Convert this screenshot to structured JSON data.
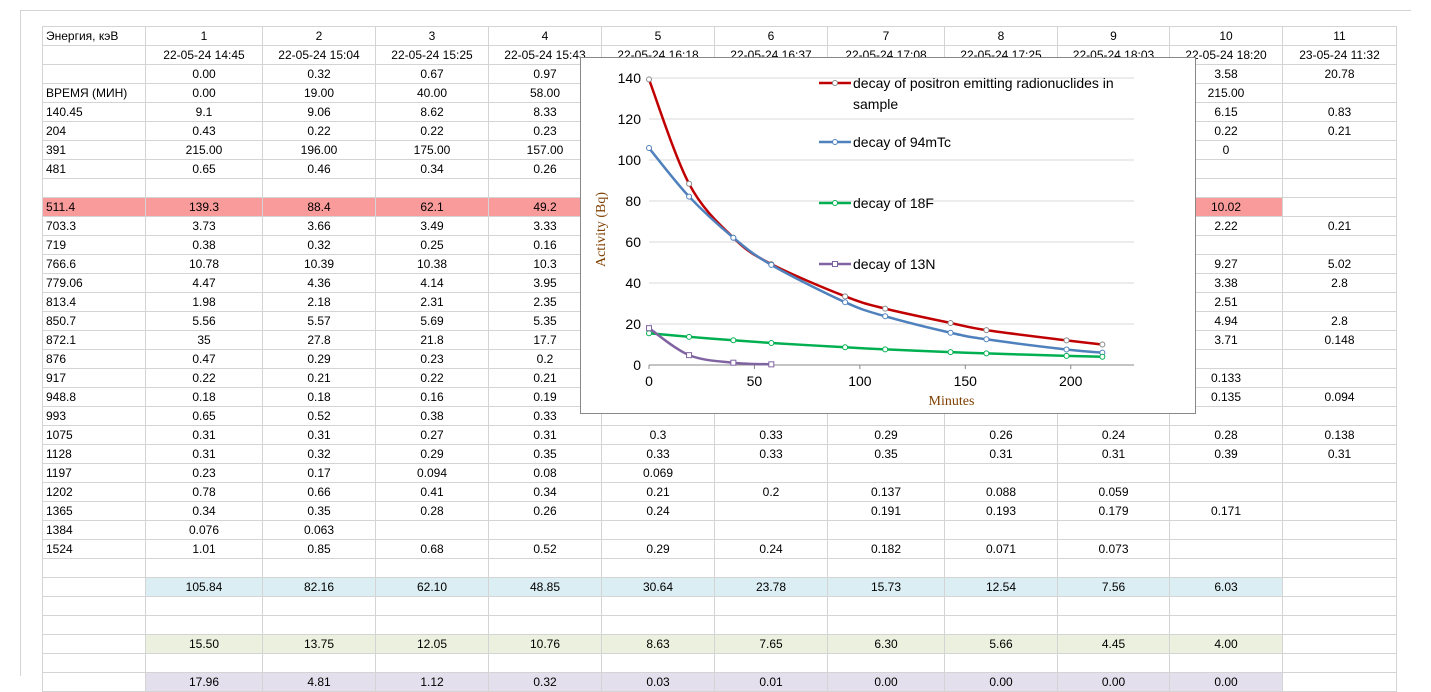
{
  "columns": [
    "Энергия, кэВ",
    "1",
    "2",
    "3",
    "4",
    "5",
    "6",
    "7",
    "8",
    "9",
    "10",
    "11"
  ],
  "highlight_row_index": 8,
  "highlight_cells": [
    0,
    1,
    2,
    3,
    4,
    10
  ],
  "rows": [
    [
      "",
      "22-05-24 14:45",
      "22-05-24 15:04",
      "22-05-24 15:25",
      "22-05-24 15:43",
      "22-05-24 16:18",
      "22-05-24 16:37",
      "22-05-24 17:08",
      "22-05-24 17:25",
      "22-05-24 18:03",
      "22-05-24 18:20",
      "23-05-24 11:32"
    ],
    [
      "",
      "0.00",
      "0.32",
      "0.67",
      "0.97",
      "",
      "",
      "",
      "",
      "",
      "3.58",
      "20.78"
    ],
    [
      "ВРЕМЯ (МИН)",
      "0.00",
      "19.00",
      "40.00",
      "58.00",
      "",
      "",
      "",
      "",
      "",
      "215.00",
      ""
    ],
    [
      "140.45",
      "9.1",
      "9.06",
      "8.62",
      "8.33",
      "",
      "",
      "",
      "",
      "",
      "6.15",
      "0.83"
    ],
    [
      "204",
      "0.43",
      "0.22",
      "0.22",
      "0.23",
      "",
      "",
      "",
      "",
      "",
      "0.22",
      "0.21"
    ],
    [
      "391",
      "215.00",
      "196.00",
      "175.00",
      "157.00",
      "",
      "",
      "",
      "",
      "",
      "0",
      ""
    ],
    [
      "481",
      "0.65",
      "0.46",
      "0.34",
      "0.26",
      "",
      "",
      "",
      "",
      "",
      "",
      ""
    ],
    [
      "",
      "",
      "",
      "",
      "",
      "",
      "",
      "",
      "",
      "",
      "",
      ""
    ],
    [
      "511.4",
      "139.3",
      "88.4",
      "62.1",
      "49.2",
      "",
      "",
      "",
      "",
      "",
      "10.02",
      ""
    ],
    [
      "703.3",
      "3.73",
      "3.66",
      "3.49",
      "3.33",
      "",
      "",
      "",
      "",
      "",
      "2.22",
      "0.21"
    ],
    [
      "719",
      "0.38",
      "0.32",
      "0.25",
      "0.16",
      "",
      "",
      "",
      "",
      "",
      "",
      ""
    ],
    [
      "766.6",
      "10.78",
      "10.39",
      "10.38",
      "10.3",
      "",
      "",
      "",
      "",
      "",
      "9.27",
      "5.02"
    ],
    [
      "779.06",
      "4.47",
      "4.36",
      "4.14",
      "3.95",
      "",
      "",
      "",
      "",
      "",
      "3.38",
      "2.8"
    ],
    [
      "813.4",
      "1.98",
      "2.18",
      "2.31",
      "2.35",
      "",
      "",
      "",
      "",
      "",
      "2.51",
      ""
    ],
    [
      "850.7",
      "5.56",
      "5.57",
      "5.69",
      "5.35",
      "",
      "",
      "",
      "",
      "",
      "4.94",
      "2.8"
    ],
    [
      "872.1",
      "35",
      "27.8",
      "21.8",
      "17.7",
      "",
      "",
      "",
      "",
      "",
      "3.71",
      "0.148"
    ],
    [
      "876",
      "0.47",
      "0.29",
      "0.23",
      "0.2",
      "",
      "",
      "",
      "",
      "",
      "",
      ""
    ],
    [
      "917",
      "0.22",
      "0.21",
      "0.22",
      "0.21",
      "",
      "",
      "",
      "",
      "",
      "0.133",
      ""
    ],
    [
      "948.8",
      "0.18",
      "0.18",
      "0.16",
      "0.19",
      "",
      "",
      "",
      "",
      "",
      "0.135",
      "0.094"
    ],
    [
      "993",
      "0.65",
      "0.52",
      "0.38",
      "0.33",
      "",
      "",
      "",
      "",
      "",
      "",
      ""
    ],
    [
      "1075",
      "0.31",
      "0.31",
      "0.27",
      "0.31",
      "0.3",
      "0.33",
      "0.29",
      "0.26",
      "0.24",
      "0.28",
      "0.138"
    ],
    [
      "1128",
      "0.31",
      "0.32",
      "0.29",
      "0.35",
      "0.33",
      "0.33",
      "0.35",
      "0.31",
      "0.31",
      "0.39",
      "0.31"
    ],
    [
      "1197",
      "0.23",
      "0.17",
      "0.094",
      "0.08",
      "0.069",
      "",
      "",
      "",
      "",
      "",
      ""
    ],
    [
      "1202",
      "0.78",
      "0.66",
      "0.41",
      "0.34",
      "0.21",
      "0.2",
      "0.137",
      "0.088",
      "0.059",
      "",
      ""
    ],
    [
      "1365",
      "0.34",
      "0.35",
      "0.28",
      "0.26",
      "0.24",
      "",
      "0.191",
      "0.193",
      "0.179",
      "0.171",
      ""
    ],
    [
      "1384",
      "0.076",
      "0.063",
      "",
      "",
      "",
      "",
      "",
      "",
      "",
      "",
      ""
    ],
    [
      "1524",
      "1.01",
      "0.85",
      "0.68",
      "0.52",
      "0.29",
      "0.24",
      "0.182",
      "0.071",
      "0.073",
      "",
      ""
    ],
    [
      "",
      "",
      "",
      "",
      "",
      "",
      "",
      "",
      "",
      "",
      "",
      ""
    ],
    [
      "",
      "105.84",
      "82.16",
      "62.10",
      "48.85",
      "30.64",
      "23.78",
      "15.73",
      "12.54",
      "7.56",
      "6.03",
      ""
    ],
    [
      "",
      "",
      "",
      "",
      "",
      "",
      "",
      "",
      "",
      "",
      "",
      ""
    ],
    [
      "",
      "",
      "",
      "",
      "",
      "",
      "",
      "",
      "",
      "",
      "",
      ""
    ],
    [
      "",
      "15.50",
      "13.75",
      "12.05",
      "10.76",
      "8.63",
      "7.65",
      "6.30",
      "5.66",
      "4.45",
      "4.00",
      ""
    ],
    [
      "",
      "",
      "",
      "",
      "",
      "",
      "",
      "",
      "",
      "",
      "",
      ""
    ],
    [
      "",
      "17.96",
      "4.81",
      "1.12",
      "0.32",
      "0.03",
      "0.01",
      "0.00",
      "0.00",
      "0.00",
      "0.00",
      ""
    ]
  ],
  "row_classes": {
    "8": "hl",
    "28": "sum-94",
    "31": "sum-18",
    "33": "sum-13"
  },
  "chart_data": {
    "type": "line",
    "title": "",
    "xlabel": "Minutes",
    "ylabel": "Activity (Bq)",
    "xlim": [
      0,
      230
    ],
    "ylim": [
      0,
      140
    ],
    "xticks": [
      0,
      50,
      100,
      150,
      200
    ],
    "yticks": [
      0,
      20,
      40,
      60,
      80,
      100,
      120,
      140
    ],
    "legend_position": "right",
    "series": [
      {
        "name": "decay of positron emitting radionuclides in sample",
        "color": "#c00000",
        "x": [
          0,
          19,
          40,
          58,
          93,
          112,
          143,
          160,
          198,
          215
        ],
        "y": [
          139.3,
          88.4,
          62.1,
          49.2,
          33.5,
          27.5,
          20.5,
          17.0,
          12.0,
          10.02
        ]
      },
      {
        "name": "decay of 94mTc",
        "color": "#4f81bd",
        "x": [
          0,
          19,
          40,
          58,
          93,
          112,
          143,
          160,
          198,
          215
        ],
        "y": [
          105.84,
          82.16,
          62.1,
          48.85,
          30.64,
          23.78,
          15.73,
          12.54,
          7.56,
          6.03
        ]
      },
      {
        "name": "decay of 18F",
        "color": "#00b050",
        "x": [
          0,
          19,
          40,
          58,
          93,
          112,
          143,
          160,
          198,
          215
        ],
        "y": [
          15.5,
          13.75,
          12.05,
          10.76,
          8.63,
          7.65,
          6.3,
          5.66,
          4.45,
          4.0
        ]
      },
      {
        "name": "decay of 13N",
        "color": "#8064a2",
        "x": [
          0,
          19,
          40,
          58
        ],
        "y": [
          17.96,
          4.81,
          1.12,
          0.32
        ]
      }
    ]
  }
}
